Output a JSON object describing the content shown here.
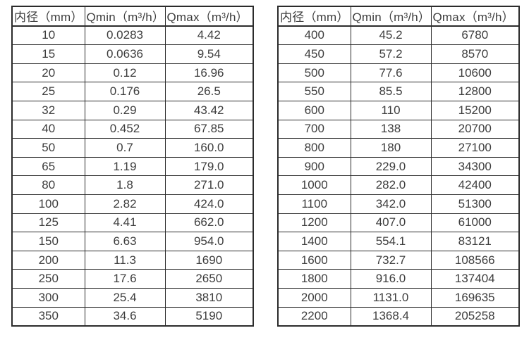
{
  "colors": {
    "background": "#ffffff",
    "border": "#2b2b2b",
    "text": "#3d3d3d"
  },
  "chart_data": [
    {
      "type": "table",
      "title": "",
      "columns": [
        "内径（mm）",
        "Qmin（m³/h）",
        "Qmax（m³/h）"
      ],
      "rows": [
        [
          "10",
          "0.0283",
          "4.42"
        ],
        [
          "15",
          "0.0636",
          "9.54"
        ],
        [
          "20",
          "0.12",
          "16.96"
        ],
        [
          "25",
          "0.176",
          "26.5"
        ],
        [
          "32",
          "0.29",
          "43.42"
        ],
        [
          "40",
          "0.452",
          "67.85"
        ],
        [
          "50",
          "0.7",
          "160.0"
        ],
        [
          "65",
          "1.19",
          "179.0"
        ],
        [
          "80",
          "1.8",
          "271.0"
        ],
        [
          "100",
          "2.82",
          "424.0"
        ],
        [
          "125",
          "4.41",
          "662.0"
        ],
        [
          "150",
          "6.63",
          "954.0"
        ],
        [
          "200",
          "11.3",
          "1690"
        ],
        [
          "250",
          "17.6",
          "2650"
        ],
        [
          "300",
          "25.4",
          "3810"
        ],
        [
          "350",
          "34.6",
          "5190"
        ]
      ]
    },
    {
      "type": "table",
      "title": "",
      "columns": [
        "内径（mm）",
        "Qmin（m³/h）",
        "Qmax（m³/h）"
      ],
      "rows": [
        [
          "400",
          "45.2",
          "6780"
        ],
        [
          "450",
          "57.2",
          "8570"
        ],
        [
          "500",
          "77.6",
          "10600"
        ],
        [
          "550",
          "85.5",
          "12800"
        ],
        [
          "600",
          "110",
          "15200"
        ],
        [
          "700",
          "138",
          "20700"
        ],
        [
          "800",
          "180",
          "27100"
        ],
        [
          "900",
          "229.0",
          "34300"
        ],
        [
          "1000",
          "282.0",
          "42400"
        ],
        [
          "1100",
          "342.0",
          "51300"
        ],
        [
          "1200",
          "407.0",
          "61000"
        ],
        [
          "1400",
          "554.1",
          "83121"
        ],
        [
          "1600",
          "732.7",
          "108566"
        ],
        [
          "1800",
          "916.0",
          "137404"
        ],
        [
          "2000",
          "1131.0",
          "169635"
        ],
        [
          "2200",
          "1368.4",
          "205258"
        ]
      ]
    }
  ]
}
